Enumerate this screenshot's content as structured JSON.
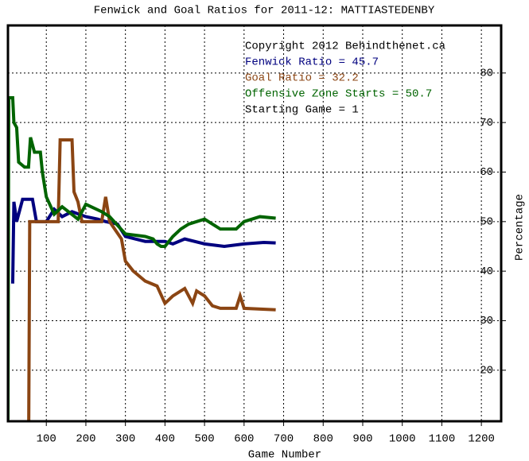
{
  "chart_data": {
    "type": "line",
    "title": "Fenwick and Goal Ratios for 2011-12: MATTIASTEDENBY",
    "x_label": "Game Number",
    "y_label": "Percentage",
    "xlim": [
      3,
      1250
    ],
    "ylim": [
      9.7,
      89.6
    ],
    "xticks": [
      100,
      200,
      300,
      400,
      500,
      600,
      700,
      800,
      900,
      1000,
      1100,
      1200
    ],
    "yticks": [
      20,
      30,
      40,
      50,
      60,
      70,
      80
    ],
    "grid": true,
    "annotations": [
      {
        "text": "Copyright 2012 Behindthenet.ca",
        "color": "#000000"
      },
      {
        "text": "Fenwick Ratio = 45.7",
        "color": "#00007f"
      },
      {
        "text": "Goal Ratio = 32.2",
        "color": "#8b4513"
      },
      {
        "text": "Offensive Zone Starts = 50.7",
        "color": "#006400"
      },
      {
        "text": "Starting Game = 1",
        "color": "#000000"
      }
    ],
    "series": [
      {
        "color": "#00007f",
        "x": [
          15,
          18,
          25,
          40,
          65,
          75,
          100,
          120,
          140,
          165,
          200,
          230,
          250,
          280,
          300,
          350,
          400,
          420,
          450,
          500,
          550,
          600,
          650,
          680
        ],
        "values": [
          37.5,
          54,
          50,
          54.5,
          54.5,
          50,
          50,
          52.5,
          51,
          52,
          51,
          50.5,
          50,
          49.5,
          47,
          46,
          46,
          45.5,
          46.5,
          45.5,
          45,
          45.5,
          45.8,
          45.7
        ]
      },
      {
        "color": "#8b4513",
        "x": [
          55,
          58,
          130,
          135,
          165,
          170,
          180,
          190,
          240,
          250,
          260,
          290,
          300,
          320,
          350,
          380,
          400,
          420,
          450,
          470,
          480,
          500,
          520,
          540,
          580,
          590,
          600,
          680
        ],
        "values": [
          0,
          50,
          50,
          66.5,
          66.5,
          56,
          54,
          50,
          50,
          55,
          50,
          46.5,
          42,
          40,
          38,
          37,
          33.5,
          35,
          36.5,
          33.5,
          36,
          35,
          33,
          32.5,
          32.5,
          35,
          32.5,
          32.2
        ]
      },
      {
        "color": "#006400",
        "x": [
          3,
          5,
          15,
          18,
          25,
          30,
          45,
          55,
          60,
          70,
          85,
          90,
          100,
          120,
          140,
          180,
          200,
          240,
          260,
          300,
          350,
          370,
          380,
          390,
          400,
          420,
          440,
          460,
          480,
          500,
          520,
          540,
          580,
          600,
          640,
          680
        ],
        "values": [
          10,
          75,
          75,
          70,
          69,
          62,
          61,
          61,
          67,
          64,
          64,
          60,
          55,
          51.5,
          53,
          50.5,
          53.5,
          52,
          51,
          47.5,
          47,
          46.5,
          45.5,
          45,
          45,
          47,
          48.5,
          49.5,
          50,
          50.5,
          49.5,
          48.5,
          48.5,
          50,
          51,
          50.7
        ]
      }
    ]
  }
}
